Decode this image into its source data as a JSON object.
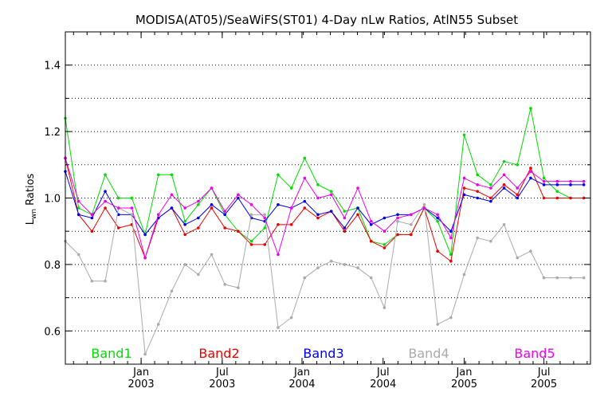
{
  "chart_data": {
    "type": "line",
    "title": "MODISA(AT05)/SeaWiFS(ST01) 4-Day nLw Ratios, AtlN55 Subset",
    "ylabel_main": "L",
    "ylabel_sub": "wn",
    "ylabel_rest": " Ratios",
    "ylim": [
      0.5,
      1.5
    ],
    "yticks": [
      0.6,
      0.8,
      1.0,
      1.2,
      1.4
    ],
    "ytick_labels": [
      "0.6",
      "0.8",
      "1.0",
      "1.2",
      "1.4"
    ],
    "xlim": [
      0,
      39.5
    ],
    "xticks": [
      {
        "x": 5.7,
        "month": "Jan",
        "year": "2003"
      },
      {
        "x": 11.8,
        "month": "Jul",
        "year": "2003"
      },
      {
        "x": 17.8,
        "month": "Jan",
        "year": "2004"
      },
      {
        "x": 23.9,
        "month": "Jul",
        "year": "2004"
      },
      {
        "x": 30.0,
        "month": "Jan",
        "year": "2005"
      },
      {
        "x": 36.0,
        "month": "Jul",
        "year": "2005"
      }
    ],
    "grid": "horizontal dotted",
    "legend_position": "bottom",
    "x": [
      0,
      1,
      2,
      3,
      4,
      5,
      6,
      7,
      8,
      9,
      10,
      11,
      12,
      13,
      14,
      15,
      16,
      17,
      18,
      19,
      20,
      21,
      22,
      23,
      24,
      25,
      26,
      27,
      28,
      29,
      30,
      31,
      32,
      33,
      34,
      35,
      36,
      37,
      38,
      39
    ],
    "series": [
      {
        "name": "Band1",
        "color": "#00dd00",
        "values": [
          1.24,
          0.97,
          0.95,
          1.07,
          1.0,
          1.0,
          0.89,
          1.07,
          1.07,
          0.93,
          0.98,
          1.03,
          0.95,
          0.9,
          0.87,
          0.91,
          1.07,
          1.03,
          1.12,
          1.04,
          1.02,
          0.96,
          0.97,
          0.87,
          0.86,
          0.89,
          0.89,
          0.97,
          0.93,
          0.83,
          1.19,
          1.07,
          1.04,
          1.11,
          1.1,
          1.27,
          1.06,
          1.02,
          1.0,
          1.0
        ]
      },
      {
        "name": "Band2",
        "color": "#ee0000",
        "values": [
          1.12,
          0.95,
          0.9,
          0.97,
          0.91,
          0.92,
          0.82,
          0.94,
          0.97,
          0.89,
          0.91,
          0.97,
          0.91,
          0.9,
          0.86,
          0.86,
          0.92,
          0.92,
          0.97,
          0.94,
          0.96,
          0.9,
          0.95,
          0.87,
          0.85,
          0.89,
          0.89,
          0.97,
          0.84,
          0.81,
          1.03,
          1.02,
          1.0,
          1.04,
          1.01,
          1.09,
          1.0,
          1.0,
          1.0,
          1.0
        ]
      },
      {
        "name": "Band3",
        "color": "#0000ee",
        "values": [
          1.08,
          0.95,
          0.94,
          1.02,
          0.95,
          0.95,
          0.89,
          0.94,
          0.97,
          0.92,
          0.94,
          0.98,
          0.95,
          1.0,
          0.94,
          0.93,
          0.98,
          0.97,
          0.99,
          0.95,
          0.96,
          0.91,
          0.97,
          0.92,
          0.94,
          0.95,
          0.95,
          0.97,
          0.94,
          0.9,
          1.01,
          1.0,
          0.99,
          1.03,
          1.0,
          1.06,
          1.04,
          1.04,
          1.04,
          1.04
        ]
      },
      {
        "name": "Band4",
        "color": "#aaaaaa",
        "values": [
          0.87,
          0.83,
          0.75,
          0.75,
          0.97,
          0.95,
          0.53,
          0.62,
          0.72,
          0.8,
          0.77,
          0.83,
          0.74,
          0.73,
          0.95,
          0.95,
          0.61,
          0.64,
          0.76,
          0.79,
          0.81,
          0.8,
          0.79,
          0.76,
          0.67,
          0.93,
          0.92,
          0.98,
          0.62,
          0.64,
          0.77,
          0.88,
          0.87,
          0.92,
          0.82,
          0.84,
          0.76,
          0.76,
          0.76,
          0.76
        ]
      },
      {
        "name": "Band5",
        "color": "#ee00ee",
        "values": [
          1.12,
          0.99,
          0.95,
          0.99,
          0.97,
          0.97,
          0.82,
          0.95,
          1.01,
          0.97,
          0.99,
          1.03,
          0.96,
          1.01,
          0.98,
          0.94,
          0.83,
          0.97,
          1.06,
          1.0,
          1.01,
          0.94,
          1.03,
          0.93,
          0.9,
          0.94,
          0.95,
          0.97,
          0.95,
          0.88,
          1.06,
          1.04,
          1.03,
          1.07,
          1.03,
          1.08,
          1.05,
          1.05,
          1.05,
          1.05
        ]
      }
    ]
  }
}
